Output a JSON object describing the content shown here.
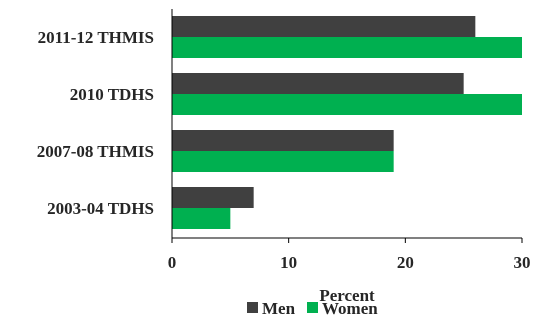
{
  "chart_data": {
    "type": "bar",
    "orientation": "horizontal",
    "categories": [
      "2011-12 THMIS",
      "2010 TDHS",
      "2007-08 THMIS",
      "2003-04 TDHS"
    ],
    "series": [
      {
        "name": "Men",
        "values": [
          26,
          25,
          19,
          7
        ],
        "color": "#404040"
      },
      {
        "name": "Women",
        "values": [
          30,
          30,
          19,
          5
        ],
        "color": "#00b050"
      }
    ],
    "xlabel": "Percent",
    "ylabel": "",
    "xlim": [
      0,
      30
    ],
    "xticks": [
      0,
      10,
      20,
      30
    ],
    "grid": false,
    "legend": "bottom"
  }
}
